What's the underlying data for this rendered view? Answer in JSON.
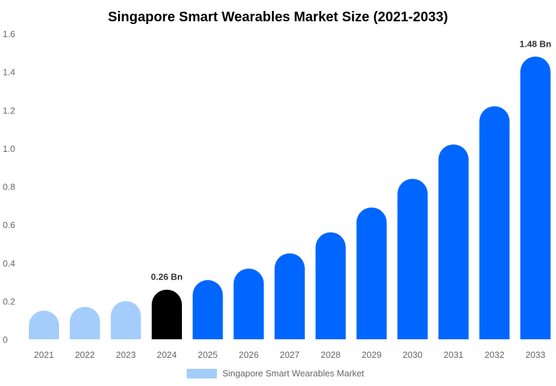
{
  "chart_data": {
    "type": "bar",
    "title": "Singapore Smart Wearables Market Size (2021-2033)",
    "xlabel": "",
    "ylabel": "",
    "categories": [
      "2021",
      "2022",
      "2023",
      "2024",
      "2025",
      "2026",
      "2027",
      "2028",
      "2029",
      "2030",
      "2031",
      "2032",
      "2033"
    ],
    "series": [
      {
        "name": "Singapore Smart Wearables Market",
        "values": [
          0.15,
          0.17,
          0.2,
          0.26,
          0.31,
          0.37,
          0.45,
          0.56,
          0.69,
          0.84,
          1.02,
          1.22,
          1.48
        ]
      }
    ],
    "ylim": [
      0,
      1.6
    ],
    "yticks": [
      "0",
      "0.2",
      "0.4",
      "0.6",
      "0.8",
      "1.0",
      "1.2",
      "1.4",
      "1.6"
    ],
    "grid": false,
    "legend_placement": "bottom",
    "data_labels": [
      {
        "category": "2024",
        "text": "0.26 Bn"
      },
      {
        "category": "2033",
        "text": "1.48 Bn"
      }
    ],
    "colors": {
      "historical": "#a4cdfb",
      "current": "#000000",
      "forecast": "#0066ff"
    },
    "color_groups": [
      "historical",
      "historical",
      "historical",
      "current",
      "forecast",
      "forecast",
      "forecast",
      "forecast",
      "forecast",
      "forecast",
      "forecast",
      "forecast",
      "forecast"
    ]
  }
}
